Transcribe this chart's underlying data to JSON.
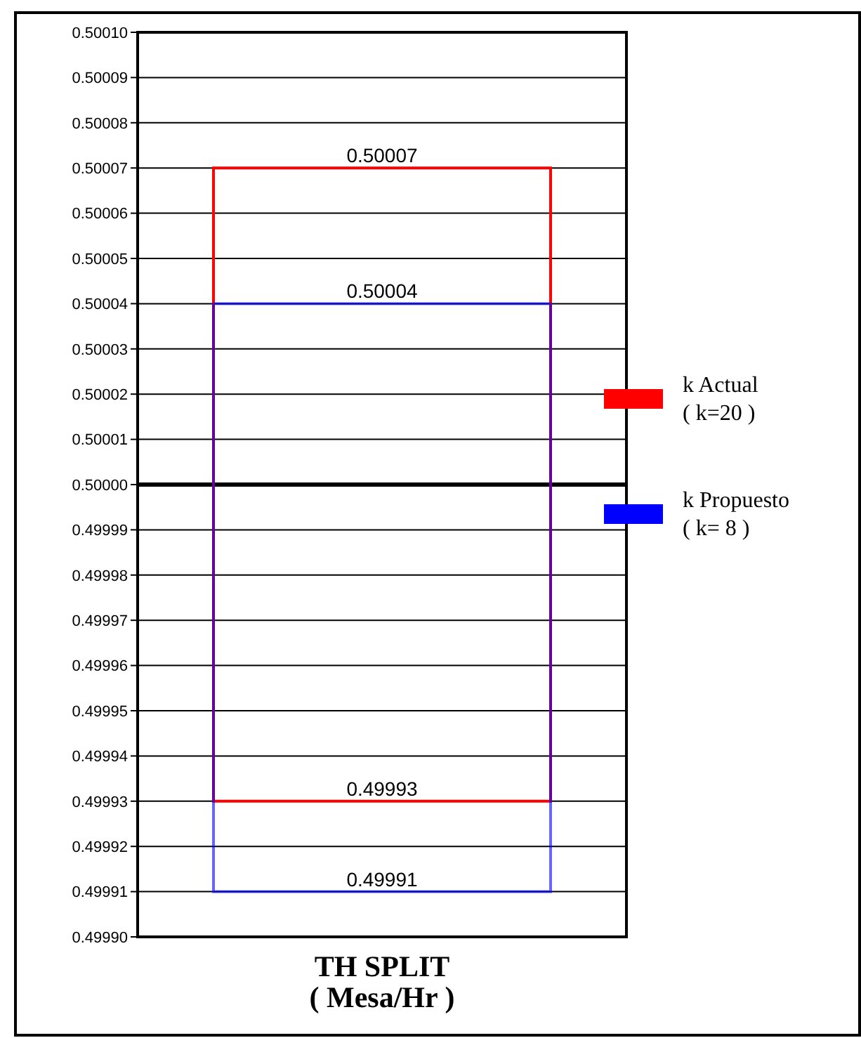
{
  "chart_data": {
    "type": "bar",
    "categories": [
      "TH SPLIT\n( Mesa/Hr )"
    ],
    "series": [
      {
        "name": "k Actual\n( k=20 )",
        "color": "#ff0000",
        "values": [
          0.00014
        ],
        "base": [
          0.49993
        ]
      },
      {
        "name": "k Propuesto\n( k= 8 )",
        "color": "#0000ff",
        "values": [
          0.00013
        ],
        "base": [
          0.49991
        ]
      }
    ],
    "annotations": [
      {
        "text": "0.50007",
        "x": "TH SPLIT\n( Mesa/Hr )",
        "y": 0.50007
      },
      {
        "text": "0.50004",
        "x": "TH SPLIT\n( Mesa/Hr )",
        "y": 0.50004
      },
      {
        "text": "0.49993",
        "x": "TH SPLIT\n( Mesa/Hr )",
        "y": 0.49993
      },
      {
        "text": "0.49991",
        "x": "TH SPLIT\n( Mesa/Hr )",
        "y": 0.49991
      }
    ],
    "ylim": [
      0.4999,
      0.5001
    ],
    "yticks": [
      {
        "value": 0.4999,
        "label": "0.49990"
      },
      {
        "value": 0.49991,
        "label": "0.49991"
      },
      {
        "value": 0.49992,
        "label": "0.49992"
      },
      {
        "value": 0.49993,
        "label": "0.49993"
      },
      {
        "value": 0.49994,
        "label": "0.49994"
      },
      {
        "value": 0.49995,
        "label": "0.49995"
      },
      {
        "value": 0.49996,
        "label": "0.49996"
      },
      {
        "value": 0.49997,
        "label": "0.49997"
      },
      {
        "value": 0.49998,
        "label": "0.49998"
      },
      {
        "value": 0.49999,
        "label": "0.49999"
      },
      {
        "value": 0.5,
        "label": "0.50000"
      },
      {
        "value": 0.50001,
        "label": "0.50001"
      },
      {
        "value": 0.50002,
        "label": "0.50002"
      },
      {
        "value": 0.50003,
        "label": "0.50003"
      },
      {
        "value": 0.50004,
        "label": "0.50004"
      },
      {
        "value": 0.50005,
        "label": "0.50005"
      },
      {
        "value": 0.50006,
        "label": "0.50006"
      },
      {
        "value": 0.50007,
        "label": "0.50007"
      },
      {
        "value": 0.50008,
        "label": "0.50008"
      },
      {
        "value": 0.50009,
        "label": "0.50009"
      },
      {
        "value": 0.5001,
        "label": "0.50010"
      }
    ],
    "ref_lines": [
      {
        "axis": "y",
        "value": 0.5,
        "color": "#000000"
      }
    ],
    "grid": "y",
    "legend": "right"
  }
}
